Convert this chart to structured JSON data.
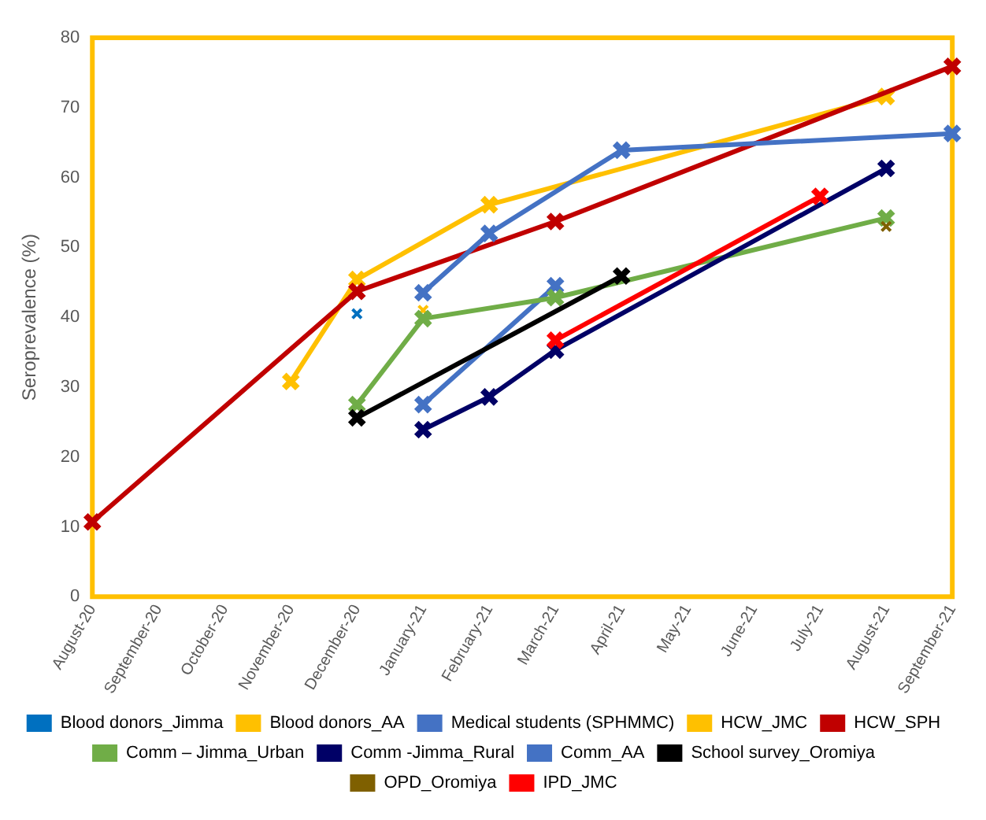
{
  "chart_data": {
    "type": "line",
    "ylabel": "Seroprevalence (%)",
    "categories": [
      "August-20",
      "September-20",
      "October-20",
      "November-20",
      "December-20",
      "January-21",
      "February-21",
      "March-21",
      "April-21",
      "May-21",
      "June-21",
      "July-21",
      "August-21",
      "September-21"
    ],
    "series": [
      {
        "name": "Blood donors_Jimma",
        "type": "scatter",
        "color": "#0070c0",
        "values": [
          null,
          null,
          null,
          null,
          40.5,
          null,
          null,
          null,
          null,
          null,
          null,
          null,
          null,
          null
        ]
      },
      {
        "name": "Blood donors_AA",
        "type": "scatter",
        "color": "#ffc000",
        "values": [
          null,
          null,
          null,
          null,
          null,
          41,
          null,
          null,
          null,
          null,
          null,
          null,
          null,
          null
        ]
      },
      {
        "name": "Medical students (SPHMMC)",
        "color": "#4472c4",
        "values": [
          null,
          null,
          null,
          null,
          null,
          27.5,
          null,
          44.5,
          null,
          null,
          null,
          null,
          null,
          null
        ]
      },
      {
        "name": "HCW_JMC",
        "color": "#ffc000",
        "values": [
          null,
          null,
          null,
          30.8,
          45.4,
          null,
          56.1,
          null,
          null,
          null,
          null,
          null,
          71.6,
          null
        ]
      },
      {
        "name": "HCW_SPH",
        "color": "#c00000",
        "values": [
          10.7,
          null,
          null,
          null,
          43.7,
          null,
          null,
          53.7,
          null,
          null,
          null,
          null,
          null,
          75.9
        ]
      },
      {
        "name": "Comm – Jimma_Urban",
        "color": "#70ad47",
        "values": [
          null,
          null,
          null,
          null,
          27.5,
          39.8,
          null,
          42.8,
          null,
          null,
          null,
          null,
          54.2,
          null
        ]
      },
      {
        "name": "Comm -Jimma_Rural",
        "color": "#000066",
        "values": [
          null,
          null,
          null,
          null,
          null,
          23.9,
          28.6,
          35.3,
          null,
          null,
          null,
          null,
          61.3,
          null
        ]
      },
      {
        "name": "Comm_AA",
        "color": "#4472c4",
        "values": [
          null,
          null,
          null,
          null,
          null,
          43.5,
          52,
          null,
          63.9,
          null,
          null,
          null,
          null,
          66.3
        ]
      },
      {
        "name": "School survey_Oromiya",
        "color": "#000000",
        "values": [
          null,
          null,
          null,
          null,
          25.6,
          null,
          null,
          null,
          45.9,
          null,
          null,
          null,
          null,
          null
        ]
      },
      {
        "name": "OPD_Oromiya",
        "type": "scatter",
        "color": "#7f6000",
        "values": [
          null,
          null,
          null,
          null,
          null,
          null,
          null,
          null,
          null,
          null,
          null,
          null,
          53,
          null
        ]
      },
      {
        "name": "IPD_JMC",
        "color": "#ff0000",
        "values": [
          null,
          null,
          null,
          null,
          null,
          null,
          null,
          36.7,
          null,
          null,
          null,
          57.3,
          null,
          null
        ]
      }
    ],
    "ylim": [
      0,
      80
    ],
    "yticks": [
      0,
      10,
      20,
      30,
      40,
      50,
      60,
      70,
      80
    ],
    "grid": false,
    "legend": "bottom",
    "marker": "cross"
  }
}
